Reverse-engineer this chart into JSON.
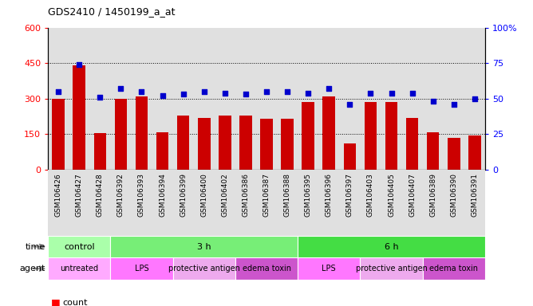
{
  "title": "GDS2410 / 1450199_a_at",
  "samples": [
    "GSM106426",
    "GSM106427",
    "GSM106428",
    "GSM106392",
    "GSM106393",
    "GSM106394",
    "GSM106399",
    "GSM106400",
    "GSM106402",
    "GSM106386",
    "GSM106387",
    "GSM106388",
    "GSM106395",
    "GSM106396",
    "GSM106397",
    "GSM106403",
    "GSM106405",
    "GSM106407",
    "GSM106389",
    "GSM106390",
    "GSM106391"
  ],
  "bar_values": [
    300,
    440,
    155,
    300,
    310,
    158,
    228,
    220,
    228,
    228,
    215,
    215,
    285,
    310,
    110,
    285,
    285,
    220,
    160,
    135,
    145
  ],
  "dot_values": [
    55,
    74,
    51,
    57,
    55,
    52,
    53,
    55,
    54,
    53,
    55,
    55,
    54,
    57,
    46,
    54,
    54,
    54,
    48,
    46,
    50
  ],
  "bar_color": "#cc0000",
  "dot_color": "#0000cc",
  "ylim_left": [
    0,
    600
  ],
  "ylim_right": [
    0,
    100
  ],
  "yticks_left": [
    0,
    150,
    300,
    450,
    600
  ],
  "yticks_right": [
    0,
    25,
    50,
    75,
    100
  ],
  "ytick_labels_right": [
    "0",
    "25",
    "50",
    "75",
    "100%"
  ],
  "grid_lines": [
    150,
    300,
    450
  ],
  "bg_color": "#e0e0e0",
  "time_groups": [
    {
      "label": "control",
      "start": 0,
      "end": 3,
      "color": "#aaffaa"
    },
    {
      "label": "3 h",
      "start": 3,
      "end": 12,
      "color": "#77ee77"
    },
    {
      "label": "6 h",
      "start": 12,
      "end": 21,
      "color": "#44dd44"
    }
  ],
  "agent_groups": [
    {
      "label": "untreated",
      "start": 0,
      "end": 3,
      "color": "#ffaaff"
    },
    {
      "label": "LPS",
      "start": 3,
      "end": 6,
      "color": "#ff77ff"
    },
    {
      "label": "protective antigen",
      "start": 6,
      "end": 9,
      "color": "#eeaaee"
    },
    {
      "label": "edema toxin",
      "start": 9,
      "end": 12,
      "color": "#cc55cc"
    },
    {
      "label": "LPS",
      "start": 12,
      "end": 15,
      "color": "#ff77ff"
    },
    {
      "label": "protective antigen",
      "start": 15,
      "end": 18,
      "color": "#eeaaee"
    },
    {
      "label": "edema toxin",
      "start": 18,
      "end": 21,
      "color": "#cc55cc"
    }
  ]
}
